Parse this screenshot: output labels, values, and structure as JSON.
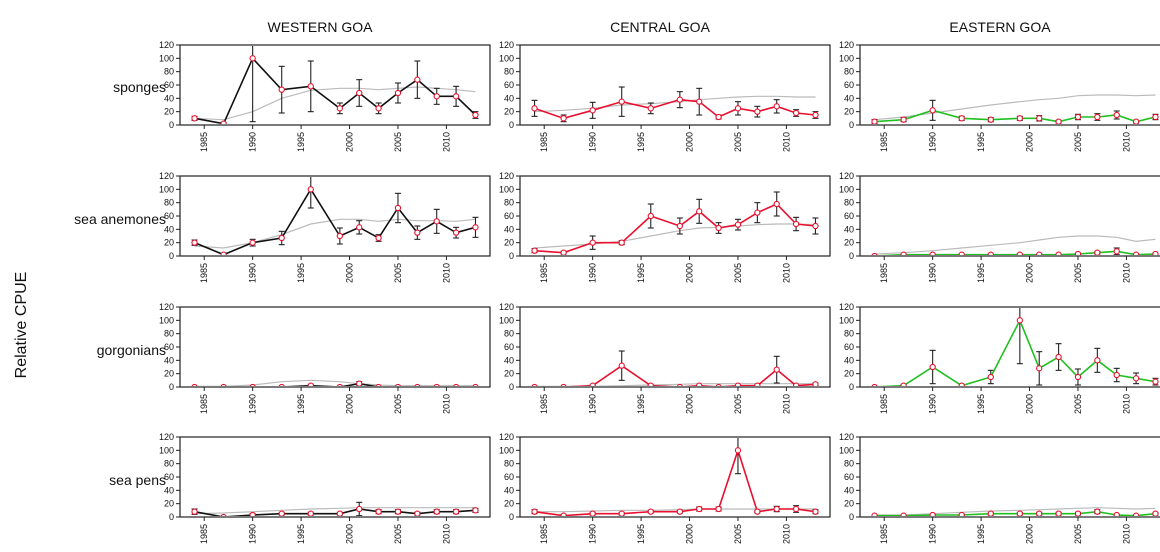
{
  "chart_data": {
    "type": "line",
    "ylabel": "Relative CPUE",
    "columns": [
      "WESTERN GOA",
      "CENTRAL GOA",
      "EASTERN GOA"
    ],
    "rows": [
      "sponges",
      "sea anemones",
      "gorgonians",
      "sea pens"
    ],
    "ylim": [
      0,
      120
    ],
    "yticks": [
      0,
      20,
      40,
      60,
      80,
      100,
      120
    ],
    "xticks": [
      1985,
      1990,
      1995,
      2000,
      2005,
      2010
    ],
    "x": [
      1984,
      1987,
      1990,
      1993,
      1996,
      1999,
      2001,
      2003,
      2005,
      2007,
      2009,
      2011,
      2013
    ],
    "line_colors": [
      "#111111",
      "#e8102e",
      "#20c020"
    ],
    "marker_color": "#e8102e",
    "trend_color": "#bbbbbb",
    "panels": [
      [
        {
          "values": [
            10,
            2,
            100,
            53,
            58,
            25,
            48,
            25,
            48,
            68,
            43,
            43,
            15
          ],
          "err": [
            3,
            2,
            95,
            35,
            38,
            8,
            20,
            8,
            15,
            28,
            12,
            15,
            5
          ],
          "trend": [
            10,
            8,
            20,
            40,
            52,
            55,
            55,
            53,
            55,
            57,
            55,
            53,
            50
          ]
        },
        {
          "values": [
            25,
            10,
            22,
            35,
            25,
            38,
            35,
            12,
            25,
            20,
            28,
            18,
            15
          ],
          "err": [
            12,
            5,
            12,
            22,
            8,
            12,
            20,
            3,
            10,
            8,
            10,
            5,
            5
          ],
          "trend": [
            20,
            22,
            25,
            30,
            32,
            35,
            38,
            40,
            42,
            43,
            43,
            42,
            42
          ]
        },
        {
          "values": [
            5,
            8,
            22,
            10,
            8,
            10,
            10,
            5,
            12,
            12,
            15,
            5,
            12
          ],
          "err": [
            3,
            3,
            15,
            3,
            3,
            3,
            4,
            2,
            4,
            5,
            6,
            2,
            4
          ],
          "trend": [
            8,
            12,
            18,
            24,
            30,
            35,
            38,
            40,
            44,
            45,
            45,
            44,
            45
          ]
        }
      ],
      [
        {
          "values": [
            20,
            2,
            20,
            27,
            100,
            30,
            43,
            27,
            72,
            35,
            52,
            35,
            43
          ],
          "err": [
            4,
            2,
            5,
            10,
            28,
            12,
            10,
            5,
            22,
            10,
            18,
            8,
            15
          ],
          "trend": [
            15,
            12,
            20,
            32,
            48,
            55,
            55,
            52,
            55,
            53,
            53,
            52,
            55
          ]
        },
        {
          "values": [
            8,
            5,
            20,
            20,
            60,
            45,
            67,
            42,
            47,
            65,
            78,
            48,
            45
          ],
          "err": [
            3,
            2,
            10,
            3,
            18,
            12,
            18,
            8,
            8,
            15,
            18,
            10,
            12
          ],
          "trend": [
            12,
            15,
            18,
            22,
            30,
            38,
            42,
            43,
            45,
            47,
            48,
            48,
            47
          ]
        },
        {
          "values": [
            0,
            2,
            2,
            2,
            2,
            2,
            2,
            2,
            3,
            5,
            7,
            2,
            3
          ],
          "err": [
            0,
            1,
            1,
            1,
            1,
            1,
            1,
            1,
            1,
            2,
            5,
            1,
            1
          ],
          "trend": [
            3,
            5,
            8,
            12,
            16,
            20,
            24,
            28,
            30,
            30,
            28,
            22,
            25
          ]
        }
      ],
      [
        {
          "values": [
            0,
            0,
            0,
            0,
            2,
            0,
            5,
            0,
            0,
            0,
            0,
            0,
            0
          ],
          "err": [
            0,
            0,
            0,
            0,
            2,
            0,
            3,
            0,
            0,
            0,
            0,
            0,
            0
          ],
          "trend": [
            1,
            1,
            3,
            8,
            10,
            8,
            5,
            3,
            2,
            2,
            2,
            2,
            2
          ]
        },
        {
          "values": [
            0,
            0,
            2,
            32,
            2,
            0,
            2,
            0,
            2,
            2,
            26,
            2,
            4
          ],
          "err": [
            0,
            0,
            1,
            22,
            1,
            0,
            1,
            0,
            1,
            1,
            20,
            1,
            2
          ],
          "trend": [
            1,
            1,
            1,
            2,
            3,
            4,
            5,
            5,
            5,
            5,
            5,
            5,
            5
          ]
        },
        {
          "values": [
            0,
            2,
            30,
            2,
            15,
            100,
            28,
            45,
            15,
            40,
            18,
            13,
            8
          ],
          "err": [
            0,
            2,
            25,
            2,
            10,
            65,
            25,
            20,
            12,
            18,
            10,
            8,
            5
          ],
          "trend": [
            0,
            0,
            0,
            0,
            0,
            0,
            0,
            0,
            0,
            0,
            0,
            0,
            0
          ]
        }
      ],
      [
        {
          "values": [
            8,
            0,
            3,
            5,
            5,
            5,
            12,
            8,
            8,
            5,
            8,
            8,
            10
          ],
          "err": [
            4,
            0,
            2,
            2,
            2,
            2,
            10,
            3,
            3,
            2,
            3,
            3,
            3
          ],
          "trend": [
            5,
            6,
            8,
            10,
            12,
            13,
            14,
            14,
            14,
            14,
            14,
            14,
            14
          ]
        },
        {
          "values": [
            8,
            2,
            5,
            5,
            8,
            8,
            12,
            12,
            100,
            8,
            12,
            12,
            8
          ],
          "err": [
            3,
            2,
            2,
            2,
            2,
            2,
            3,
            3,
            35,
            2,
            4,
            5,
            3
          ],
          "trend": [
            8,
            8,
            9,
            10,
            10,
            11,
            12,
            12,
            12,
            12,
            12,
            12,
            12
          ]
        },
        {
          "values": [
            2,
            2,
            3,
            3,
            5,
            5,
            5,
            5,
            5,
            8,
            3,
            2,
            5
          ],
          "err": [
            1,
            1,
            1,
            1,
            2,
            2,
            2,
            2,
            2,
            3,
            1,
            1,
            2
          ],
          "trend": [
            3,
            3,
            5,
            7,
            9,
            10,
            11,
            12,
            13,
            14,
            13,
            12,
            13
          ]
        }
      ]
    ]
  }
}
